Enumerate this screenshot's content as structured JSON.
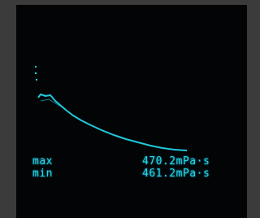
{
  "readout": {
    "rows": [
      {
        "label": "max",
        "value": "470.2mPa·s"
      },
      {
        "label": "min",
        "value": "461.2mPa·s"
      }
    ]
  }
}
